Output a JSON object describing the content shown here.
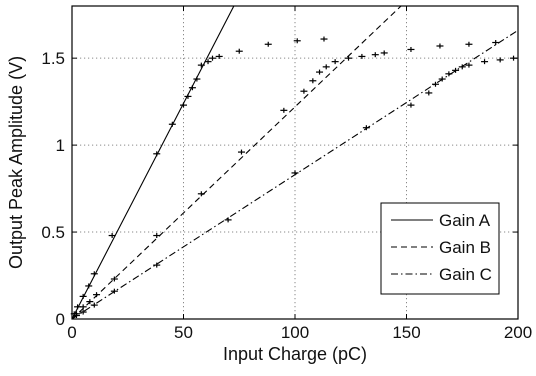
{
  "chart_data": {
    "type": "line",
    "xlabel": "Input Charge (pC)",
    "ylabel": "Output Peak Amplitude (V)",
    "xlim": [
      0,
      200
    ],
    "ylim": [
      0,
      1.8
    ],
    "xticks": [
      "0",
      "50",
      "100",
      "150",
      "200"
    ],
    "yticks": [
      "0",
      "0.5",
      "1",
      "1.5"
    ],
    "grid": true,
    "legend_position": "bottom-right",
    "series": [
      {
        "name": "Gain A",
        "line_style": "solid",
        "fit_slope": 0.0248,
        "points": [
          [
            1,
            0.03
          ],
          [
            2.5,
            0.07
          ],
          [
            5,
            0.13
          ],
          [
            7.5,
            0.19
          ],
          [
            10,
            0.26
          ],
          [
            18,
            0.48
          ],
          [
            38,
            0.95
          ],
          [
            45,
            1.12
          ],
          [
            50,
            1.23
          ],
          [
            52,
            1.28
          ],
          [
            54,
            1.33
          ],
          [
            56,
            1.38
          ],
          [
            58,
            1.46
          ],
          [
            61,
            1.48
          ],
          [
            63,
            1.5
          ],
          [
            66,
            1.51
          ],
          [
            75,
            1.54
          ],
          [
            88,
            1.58
          ],
          [
            101,
            1.6
          ],
          [
            113,
            1.61
          ]
        ]
      },
      {
        "name": "Gain B",
        "line_style": "dashed",
        "fit_slope": 0.0122,
        "points": [
          [
            2,
            0.03
          ],
          [
            5,
            0.07
          ],
          [
            8,
            0.1
          ],
          [
            11,
            0.14
          ],
          [
            19,
            0.23
          ],
          [
            38,
            0.48
          ],
          [
            58,
            0.72
          ],
          [
            76,
            0.96
          ],
          [
            95,
            1.2
          ],
          [
            104,
            1.31
          ],
          [
            108,
            1.37
          ],
          [
            111,
            1.42
          ],
          [
            114,
            1.45
          ],
          [
            118,
            1.48
          ],
          [
            124,
            1.5
          ],
          [
            130,
            1.51
          ],
          [
            136,
            1.52
          ],
          [
            140,
            1.53
          ],
          [
            152,
            1.55
          ],
          [
            165,
            1.57
          ],
          [
            178,
            1.58
          ],
          [
            190,
            1.59
          ]
        ]
      },
      {
        "name": "Gain C",
        "line_style": "dash-dot",
        "fit_slope": 0.0083,
        "points": [
          [
            2,
            0.02
          ],
          [
            5,
            0.04
          ],
          [
            10,
            0.08
          ],
          [
            19,
            0.16
          ],
          [
            38,
            0.31
          ],
          [
            70,
            0.57
          ],
          [
            100,
            0.84
          ],
          [
            132,
            1.1
          ],
          [
            152,
            1.23
          ],
          [
            160,
            1.3
          ],
          [
            163,
            1.35
          ],
          [
            166,
            1.38
          ],
          [
            169,
            1.41
          ],
          [
            172,
            1.43
          ],
          [
            175,
            1.45
          ],
          [
            178,
            1.46
          ],
          [
            185,
            1.48
          ],
          [
            192,
            1.49
          ],
          [
            198,
            1.5
          ]
        ]
      }
    ]
  }
}
